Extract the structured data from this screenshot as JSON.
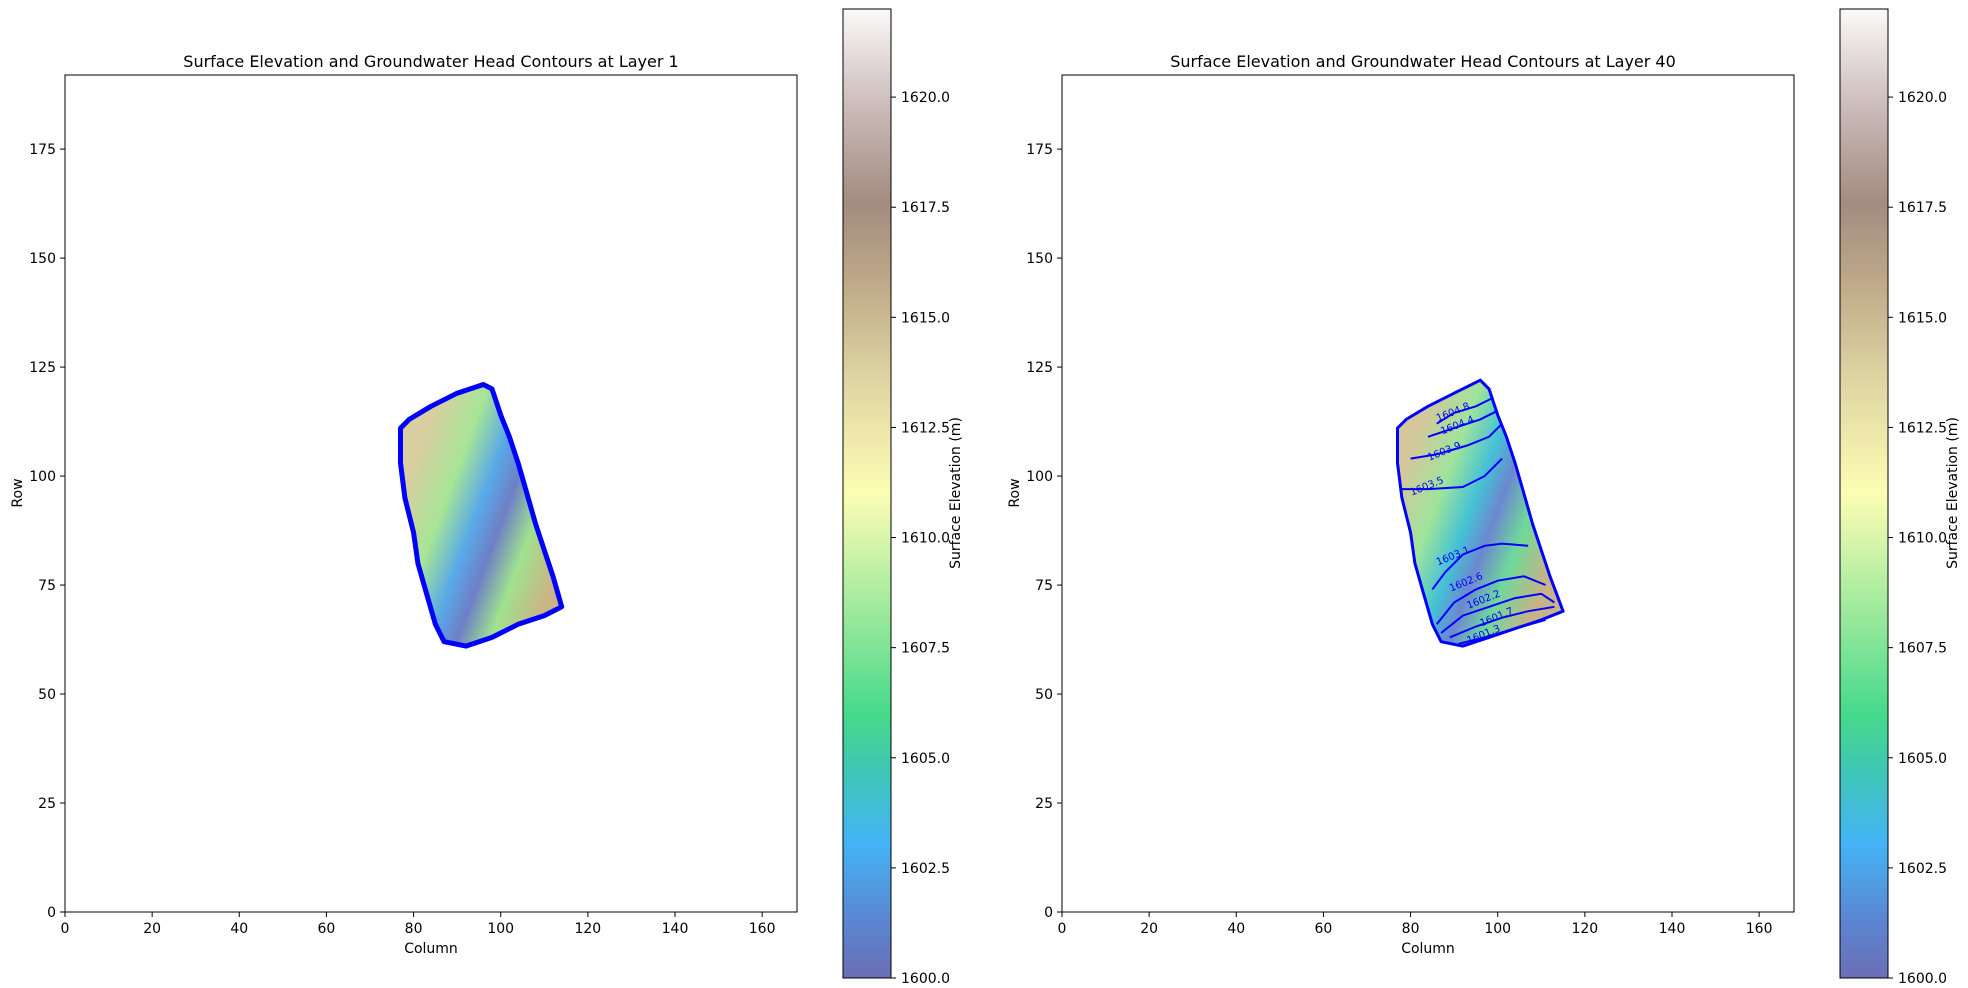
{
  "chart_data": [
    {
      "type": "heatmap",
      "title": "Surface Elevation and Groundwater Head Contours at Layer 1",
      "xlabel": "Column",
      "ylabel": "Row",
      "xlim": [
        0,
        168
      ],
      "ylim": [
        0,
        192
      ],
      "x_ticks": [
        0,
        20,
        40,
        60,
        80,
        100,
        120,
        140,
        160
      ],
      "y_ticks": [
        0,
        25,
        50,
        75,
        100,
        125,
        150,
        175
      ],
      "grid": false,
      "domain_polygon": [
        [
          77,
          111
        ],
        [
          79,
          113
        ],
        [
          84,
          116
        ],
        [
          90,
          119
        ],
        [
          96,
          121
        ],
        [
          98,
          120
        ],
        [
          100,
          114
        ],
        [
          102,
          109
        ],
        [
          104,
          103
        ],
        [
          106,
          96
        ],
        [
          108,
          89
        ],
        [
          110,
          83
        ],
        [
          112,
          77
        ],
        [
          114,
          70
        ],
        [
          110,
          68
        ],
        [
          104,
          66
        ],
        [
          98,
          63
        ],
        [
          92,
          61
        ],
        [
          87,
          62
        ],
        [
          85,
          66
        ],
        [
          83,
          73
        ],
        [
          81,
          80
        ],
        [
          80,
          87
        ],
        [
          78,
          95
        ],
        [
          77,
          103
        ]
      ],
      "boundary_contour_color": "#0000ff",
      "contours": [],
      "colorbar": {
        "label": "Surface Elevation (m)",
        "min": 1600,
        "max": 1622,
        "ticks": [
          "1600.0",
          "1602.5",
          "1605.0",
          "1607.5",
          "1610.0",
          "1612.5",
          "1615.0",
          "1617.5",
          "1620.0"
        ],
        "colormap": "terrain"
      }
    },
    {
      "type": "heatmap",
      "title": "Surface Elevation and Groundwater Head Contours at Layer 40",
      "xlabel": "Column",
      "ylabel": "Row",
      "xlim": [
        0,
        168
      ],
      "ylim": [
        0,
        192
      ],
      "x_ticks": [
        0,
        20,
        40,
        60,
        80,
        100,
        120,
        140,
        160
      ],
      "y_ticks": [
        0,
        25,
        50,
        75,
        100,
        125,
        150,
        175
      ],
      "grid": false,
      "domain_polygon": [
        [
          77,
          111
        ],
        [
          79,
          113
        ],
        [
          84,
          116
        ],
        [
          90,
          119
        ],
        [
          96,
          122
        ],
        [
          98,
          120
        ],
        [
          100,
          114
        ],
        [
          102,
          109
        ],
        [
          104,
          103
        ],
        [
          106,
          96
        ],
        [
          108,
          89
        ],
        [
          110,
          83
        ],
        [
          112,
          77
        ],
        [
          115,
          69
        ],
        [
          110,
          67
        ],
        [
          104,
          65
        ],
        [
          98,
          63
        ],
        [
          92,
          61
        ],
        [
          87,
          62
        ],
        [
          85,
          66
        ],
        [
          83,
          73
        ],
        [
          81,
          80
        ],
        [
          80,
          87
        ],
        [
          78,
          95
        ],
        [
          77,
          103
        ]
      ],
      "boundary_contour_color": "#0000ff",
      "contours": [
        {
          "level": "1604.8",
          "label_pos": [
            90,
            114
          ],
          "points": [
            [
              86,
              112
            ],
            [
              90,
              114.5
            ],
            [
              95,
              116
            ],
            [
              99,
              118
            ]
          ]
        },
        {
          "level": "1604.4",
          "label_pos": [
            91,
            111
          ],
          "points": [
            [
              84,
              109
            ],
            [
              90,
              111
            ],
            [
              96,
              113
            ],
            [
              100,
              115
            ]
          ]
        },
        {
          "level": "1603.9",
          "label_pos": [
            88,
            105
          ],
          "points": [
            [
              80,
              104
            ],
            [
              86,
              105
            ],
            [
              93,
              107
            ],
            [
              98,
              109
            ],
            [
              101,
              112
            ]
          ]
        },
        {
          "level": "1603.5",
          "label_pos": [
            84,
            97
          ],
          "points": [
            [
              78,
              97
            ],
            [
              84,
              97
            ],
            [
              92,
              97.5
            ],
            [
              97,
              100
            ],
            [
              101,
              104
            ]
          ]
        },
        {
          "level": "1603.1",
          "label_pos": [
            90,
            81
          ],
          "points": [
            [
              85,
              74
            ],
            [
              88,
              78
            ],
            [
              92,
              82
            ],
            [
              97,
              84
            ],
            [
              101,
              84.5
            ],
            [
              107,
              84
            ]
          ]
        },
        {
          "level": "1602.6",
          "label_pos": [
            93,
            75
          ],
          "points": [
            [
              86,
              66
            ],
            [
              90,
              71
            ],
            [
              95,
              74
            ],
            [
              100,
              76
            ],
            [
              106,
              77
            ],
            [
              111,
              75
            ]
          ]
        },
        {
          "level": "1602.2",
          "label_pos": [
            97,
            71
          ],
          "points": [
            [
              87,
              64
            ],
            [
              92,
              68
            ],
            [
              98,
              70
            ],
            [
              104,
              72
            ],
            [
              110,
              73
            ],
            [
              113,
              71
            ]
          ]
        },
        {
          "level": "1601.7",
          "label_pos": [
            100,
            67
          ],
          "points": [
            [
              89,
              63
            ],
            [
              95,
              65.5
            ],
            [
              101,
              67.5
            ],
            [
              107,
              69
            ],
            [
              113,
              70
            ]
          ]
        },
        {
          "level": "1601.3",
          "label_pos": [
            97,
            63
          ],
          "points": [
            [
              91,
              61.5
            ],
            [
              97,
              63
            ],
            [
              104,
              65
            ],
            [
              111,
              67
            ]
          ]
        }
      ],
      "colorbar": {
        "label": "Surface Elevation (m)",
        "min": 1600,
        "max": 1622,
        "ticks": [
          "1600.0",
          "1602.5",
          "1605.0",
          "1607.5",
          "1610.0",
          "1612.5",
          "1615.0",
          "1617.5",
          "1620.0"
        ],
        "colormap": "terrain"
      }
    }
  ]
}
